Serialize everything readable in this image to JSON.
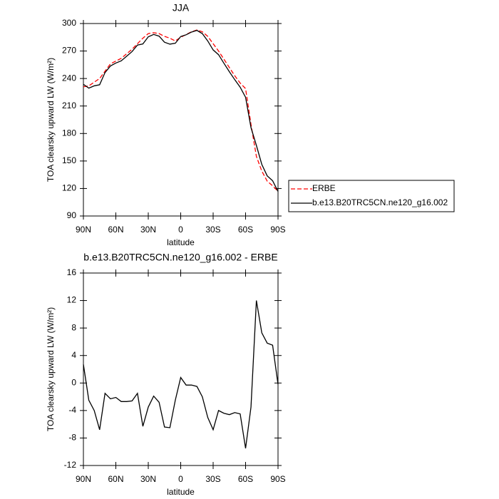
{
  "chart_data": [
    {
      "type": "line",
      "title": "JJA",
      "x_label": "latitude",
      "y_label": "TOA clearsky upward LW (W/m²)",
      "x": [
        90,
        85,
        80,
        75,
        70,
        65,
        60,
        55,
        50,
        45,
        40,
        35,
        30,
        25,
        20,
        15,
        10,
        5,
        0,
        -5,
        -10,
        -15,
        -20,
        -25,
        -30,
        -35,
        -40,
        -45,
        -50,
        -55,
        -60,
        -65,
        -70,
        -75,
        -80,
        -85,
        -90
      ],
      "series": [
        {
          "name": "ERBE",
          "color": "#ff0000",
          "line_style": "dashed",
          "values": [
            231,
            232,
            236,
            240,
            248,
            256,
            259,
            262,
            267,
            272,
            278,
            284,
            289,
            290,
            289,
            286,
            284,
            281,
            285,
            288,
            291,
            293,
            291,
            286,
            278,
            270,
            261,
            252,
            243,
            235,
            229,
            190,
            155,
            139,
            128,
            123,
            117
          ]
        },
        {
          "name": "b.e13.B20TRC5CN.ne120_g16.002",
          "color": "#000000",
          "line_style": "solid",
          "values": [
            233.7,
            229.5,
            232,
            233.2,
            246.5,
            253.7,
            256.9,
            259.3,
            264.3,
            269.4,
            276.5,
            277.7,
            285.5,
            288.1,
            286.2,
            279.6,
            277.5,
            278.5,
            285.8,
            287.7,
            290.7,
            292.5,
            289,
            281,
            271.2,
            266,
            256.6,
            247.4,
            238.7,
            230.5,
            219.5,
            186.5,
            167,
            146.3,
            133.8,
            128.5,
            116.8
          ]
        }
      ],
      "xlim": [
        90,
        -90
      ],
      "xticks": [
        {
          "value": 90,
          "label": "90N"
        },
        {
          "value": 60,
          "label": "60N"
        },
        {
          "value": 30,
          "label": "30N"
        },
        0,
        {
          "value": -30,
          "label": "30S"
        },
        {
          "value": -60,
          "label": "60S"
        },
        {
          "value": -90,
          "label": "90S"
        }
      ],
      "ylim": [
        90,
        300
      ],
      "yticks": [
        90,
        120,
        150,
        180,
        210,
        240,
        270,
        300
      ],
      "legend": "outside-right"
    },
    {
      "type": "line",
      "title": "b.e13.B20TRC5CN.ne120_g16.002 - ERBE",
      "x_label": "latitude",
      "y_label": "TOA clearsky upward LW (W/m²)",
      "x": [
        90,
        85,
        80,
        75,
        70,
        65,
        60,
        55,
        50,
        45,
        40,
        35,
        30,
        25,
        20,
        15,
        10,
        5,
        0,
        -5,
        -10,
        -15,
        -20,
        -25,
        -30,
        -35,
        -40,
        -45,
        -50,
        -55,
        -60,
        -65,
        -70,
        -75,
        -80,
        -85,
        -90
      ],
      "values": [
        2.7,
        -2.5,
        -4,
        -6.8,
        -1.5,
        -2.3,
        -2.1,
        -2.7,
        -2.7,
        -2.6,
        -1.5,
        -6.3,
        -3.5,
        -1.9,
        -2.8,
        -6.4,
        -6.5,
        -2.5,
        0.8,
        -0.3,
        -0.3,
        -0.5,
        -2,
        -5,
        -6.8,
        -4,
        -4.4,
        -4.6,
        -4.3,
        -4.5,
        -9.5,
        -3.5,
        12,
        7.3,
        5.8,
        5.5,
        -0.2
      ],
      "color": "#000000",
      "xlim": [
        90,
        -90
      ],
      "xticks": [
        {
          "value": 90,
          "label": "90N"
        },
        {
          "value": 60,
          "label": "60N"
        },
        {
          "value": 30,
          "label": "30N"
        },
        0,
        {
          "value": -30,
          "label": "30S"
        },
        {
          "value": -60,
          "label": "60S"
        },
        {
          "value": -90,
          "label": "90S"
        }
      ],
      "ylim": [
        -12,
        16
      ],
      "yticks": [
        -12,
        -8,
        -4,
        0,
        4,
        8,
        12,
        16
      ]
    }
  ]
}
